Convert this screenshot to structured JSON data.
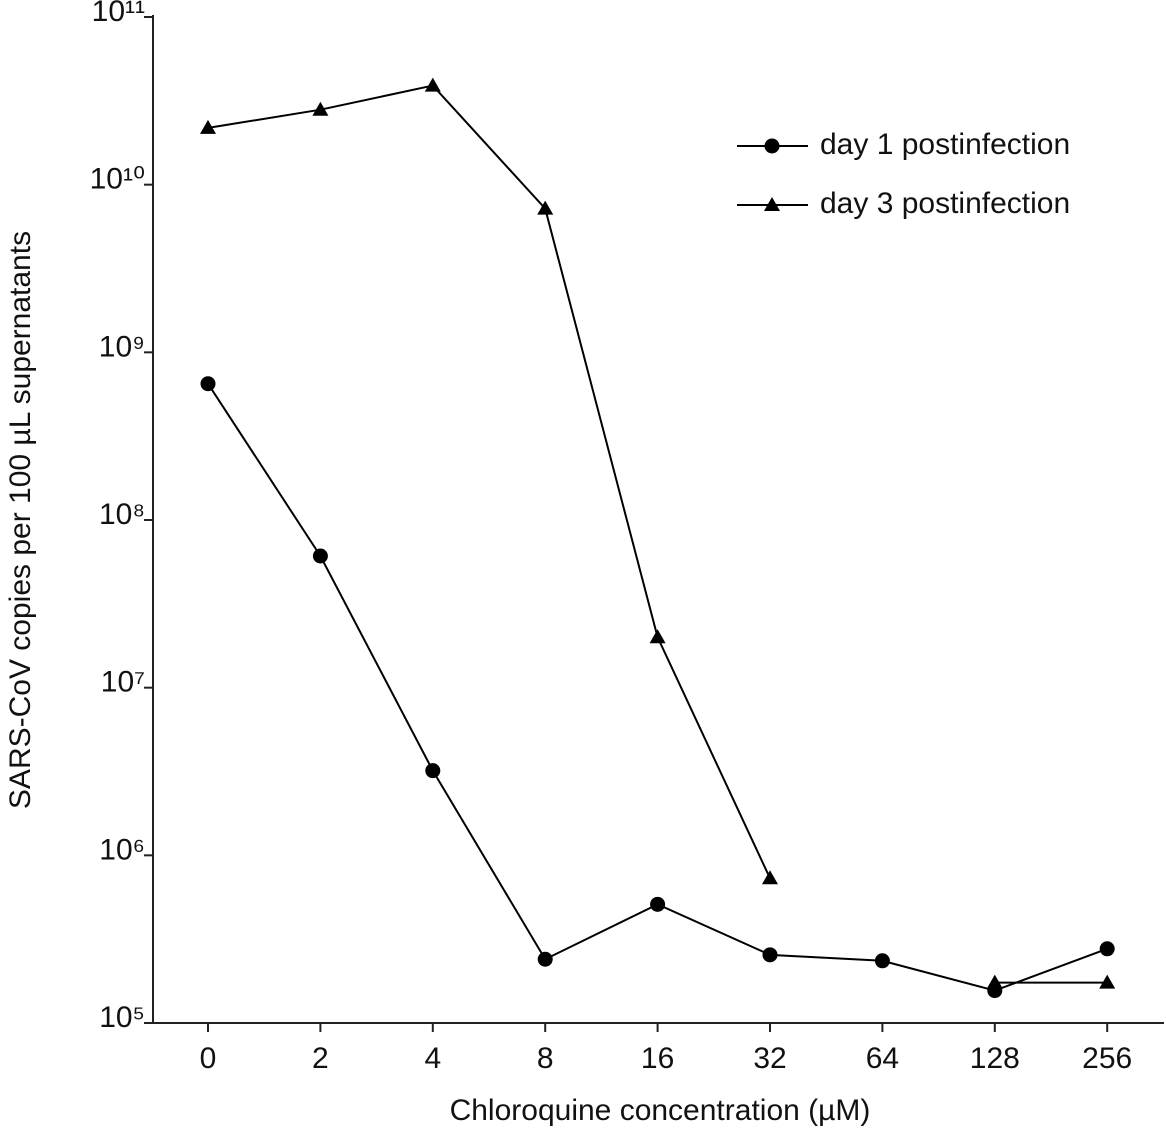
{
  "chart_data": {
    "type": "line",
    "xlabel": "Chloroquine concentration  (µM)",
    "ylabel": "SARS-CoV copies per 100 µL supernatants",
    "categories": [
      "0",
      "2",
      "4",
      "8",
      "16",
      "32",
      "64",
      "128",
      "256"
    ],
    "series": [
      {
        "name": "day 1 postinfection",
        "color": "#000000",
        "marker": "circle",
        "values": [
          650000000,
          61000000,
          3200000,
          240000,
          510000,
          255000,
          235000,
          156000,
          277000
        ]
      },
      {
        "name": "day 3 postinfection",
        "color": "#000000",
        "marker": "triangle",
        "values": [
          21800000000,
          28000000000,
          39000000000,
          7200000000,
          20000000,
          730000,
          null,
          174000,
          174000
        ]
      }
    ],
    "ylim": [
      100000,
      100000000000
    ],
    "yscale": "log",
    "yticks": [
      {
        "value": 100000,
        "label": "10⁵"
      },
      {
        "value": 1000000,
        "label": "10⁶"
      },
      {
        "value": 10000000,
        "label": "10⁷"
      },
      {
        "value": 100000000,
        "label": "10⁸"
      },
      {
        "value": 1000000000,
        "label": "10⁹"
      },
      {
        "value": 10000000000,
        "label": "10¹⁰"
      },
      {
        "value": 100000000000,
        "label": "10¹¹"
      }
    ],
    "grid": false,
    "legend": "upper right"
  }
}
